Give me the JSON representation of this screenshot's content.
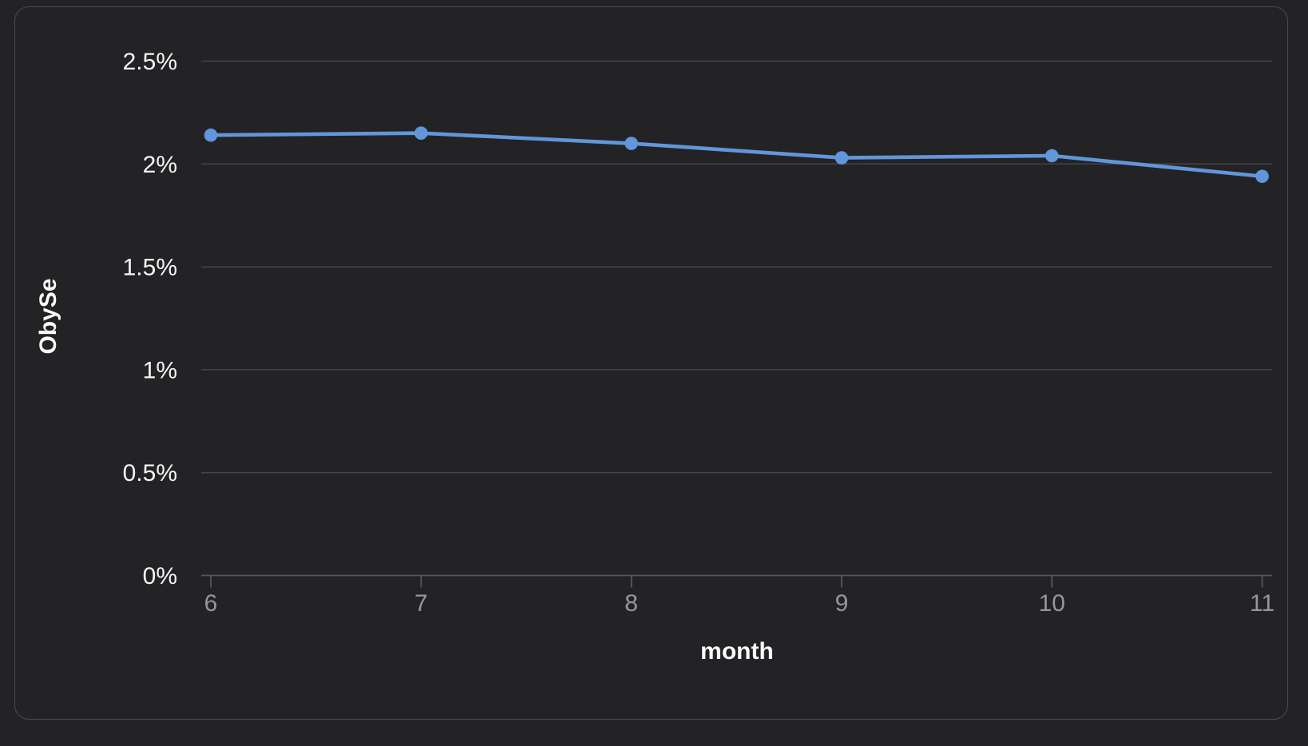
{
  "theme": {
    "background": "#232326",
    "card_border": "#4a4b4e",
    "grid_color": "#434448",
    "axis_color": "#57585c",
    "line_color": "#6296db",
    "point_color": "#6296db",
    "y_tick_color": "#f4f4f5",
    "x_tick_color": "#96969b",
    "axis_title_color": "#fafafa"
  },
  "chart_data": {
    "type": "line",
    "title": "",
    "xlabel": "month",
    "ylabel": "ObySe",
    "x": [
      6,
      7,
      8,
      9,
      10,
      11
    ],
    "x_tick_labels": [
      "6",
      "7",
      "8",
      "9",
      "10",
      "11"
    ],
    "series": [
      {
        "name": "ObySe",
        "values": [
          2.14,
          2.15,
          2.1,
          2.03,
          2.04,
          1.94
        ]
      }
    ],
    "unit": "%",
    "ylim": [
      0,
      2.5
    ],
    "y_ticks": [
      0,
      0.5,
      1,
      1.5,
      2,
      2.5
    ],
    "y_tick_labels": [
      "0%",
      "0.5%",
      "1%",
      "1.5%",
      "2%",
      "2.5%"
    ],
    "grid": "horizontal",
    "legend": "none",
    "marker": "circle"
  }
}
